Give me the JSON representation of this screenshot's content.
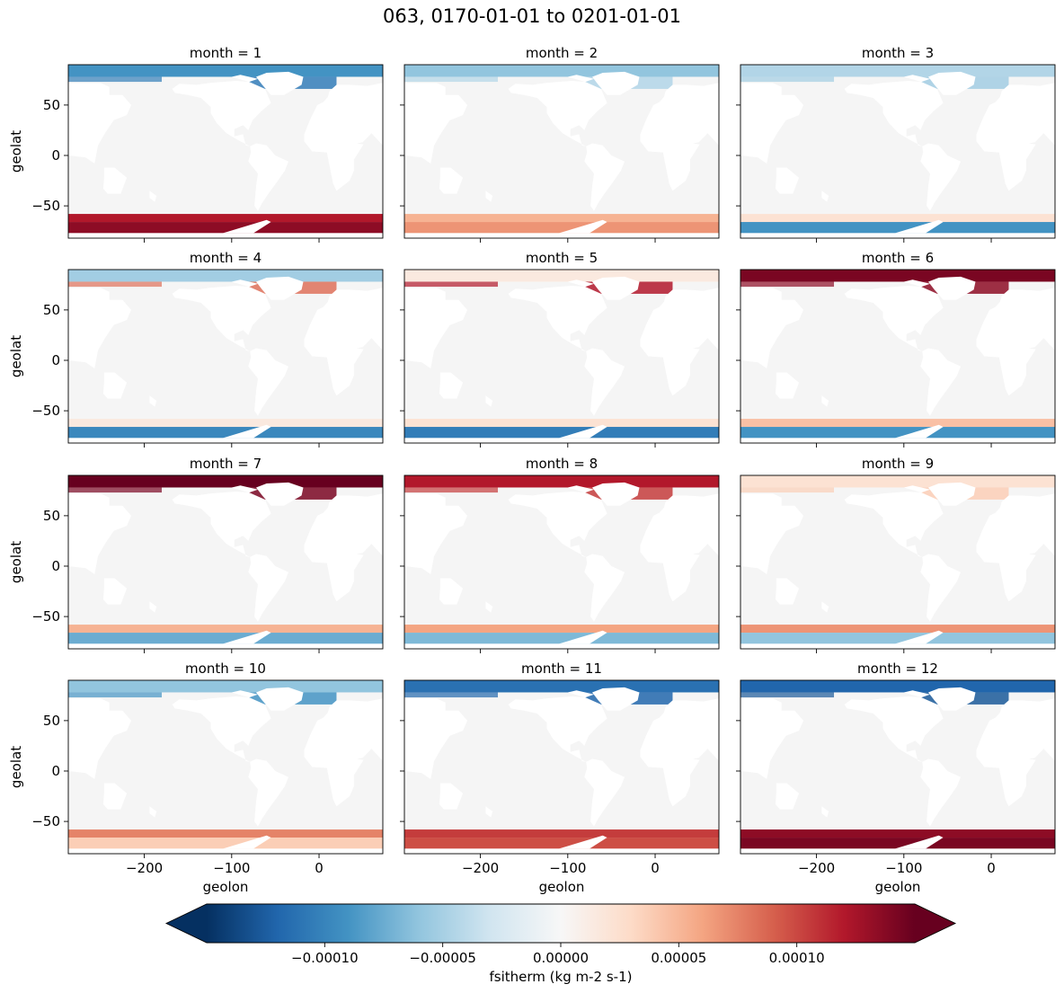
{
  "chart_data": {
    "type": "heatmap",
    "suptitle": "063, 0170-01-01 to 0201-01-01",
    "xlabel": "geolon",
    "ylabel": "geolat",
    "xlim": [
      -287,
      73
    ],
    "ylim": [
      -82,
      90
    ],
    "xticks": [
      -200,
      -100,
      0
    ],
    "xtick_labels": [
      "−200",
      "−100",
      "0"
    ],
    "yticks": [
      50,
      0,
      -50
    ],
    "ytick_labels": [
      "50",
      "0",
      "−50"
    ],
    "colormap": "RdBu_r",
    "colorbar": {
      "label": "fsitherm (kg m-2 s-1)",
      "range": [
        -0.00015,
        0.00015
      ],
      "ticks": [
        -0.0001,
        -5e-05,
        0,
        5e-05,
        0.0001
      ],
      "tick_labels": [
        "−0.00010",
        "−0.00005",
        "0.00000",
        "0.00005",
        "0.00010"
      ],
      "extend": "both",
      "colors": [
        "#053061",
        "#2166ac",
        "#4393c3",
        "#92c5de",
        "#d1e5f0",
        "#f7f7f7",
        "#fddbc7",
        "#f4a582",
        "#d6604d",
        "#b2182b",
        "#67001f"
      ]
    },
    "panels": [
      {
        "title": "month = 1",
        "arctic": -0.6,
        "nh_marginal": -0.7,
        "southern_outer": 0.8,
        "southern_inner": 0.9
      },
      {
        "title": "month = 2",
        "arctic": -0.4,
        "nh_marginal": -0.3,
        "southern_outer": 0.35,
        "southern_inner": 0.45
      },
      {
        "title": "month = 3",
        "arctic": -0.3,
        "nh_marginal": -0.35,
        "southern_outer": 0.15,
        "southern_inner": -0.6
      },
      {
        "title": "month = 4",
        "arctic": -0.35,
        "nh_marginal": 0.55,
        "southern_outer": 0.1,
        "southern_inner": -0.65
      },
      {
        "title": "month = 5",
        "arctic": 0.1,
        "nh_marginal": 0.8,
        "southern_outer": 0.15,
        "southern_inner": -0.7
      },
      {
        "title": "month = 6",
        "arctic": 0.95,
        "nh_marginal": 0.9,
        "southern_outer": 0.3,
        "southern_inner": -0.6
      },
      {
        "title": "month = 7",
        "arctic": 1.0,
        "nh_marginal": 0.95,
        "southern_outer": 0.35,
        "southern_inner": -0.5
      },
      {
        "title": "month = 8",
        "arctic": 0.8,
        "nh_marginal": 0.7,
        "southern_outer": 0.4,
        "southern_inner": -0.45
      },
      {
        "title": "month = 9",
        "arctic": 0.15,
        "nh_marginal": 0.25,
        "southern_outer": 0.45,
        "southern_inner": -0.4
      },
      {
        "title": "month = 10",
        "arctic": -0.4,
        "nh_marginal": -0.6,
        "southern_outer": 0.5,
        "southern_inner": 0.25
      },
      {
        "title": "month = 11",
        "arctic": -0.75,
        "nh_marginal": -0.8,
        "southern_outer": 0.7,
        "southern_inner": 0.65
      },
      {
        "title": "month = 12",
        "arctic": -0.8,
        "nh_marginal": -0.85,
        "southern_outer": 0.9,
        "southern_inner": 0.95
      }
    ]
  }
}
